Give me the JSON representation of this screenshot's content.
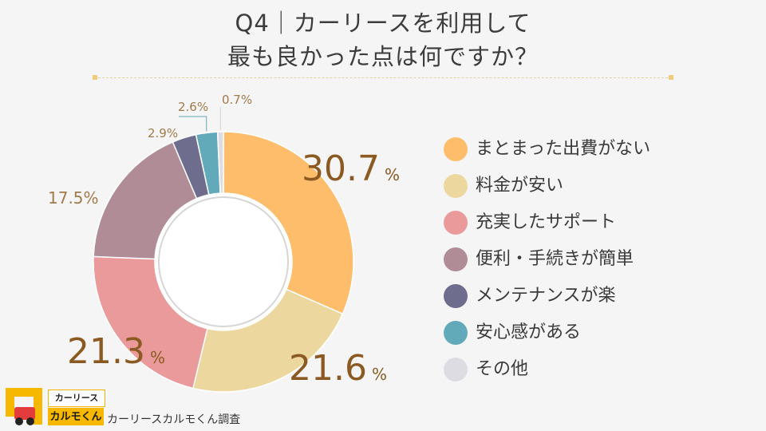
{
  "title_line1": "Q4｜カーリースを利用して",
  "title_line2": "最も良かった点は何ですか？",
  "chart_data": {
    "type": "pie",
    "donut": true,
    "categories": [
      "まとまった出費がない",
      "料金が安い",
      "充実したサポート",
      "便利・手続きが簡単",
      "メンテナンスが楽",
      "安心感がある",
      "その他"
    ],
    "values": [
      30.7,
      21.6,
      21.3,
      17.5,
      2.9,
      2.6,
      0.7
    ],
    "labels": [
      "30.7",
      "21.6",
      "21.3",
      "17.5%",
      "2.9%",
      "2.6%",
      "0.7%"
    ],
    "unit": "%",
    "colors": [
      "#fdbd6b",
      "#ecd89e",
      "#ea9a9a",
      "#b08c96",
      "#6e6d8e",
      "#62a9b9",
      "#dcdce2"
    ],
    "legend_position": "right"
  },
  "logo": {
    "line1": "カーリース",
    "line2": "カルモくん"
  },
  "source": "カーリースカルモくん調査"
}
